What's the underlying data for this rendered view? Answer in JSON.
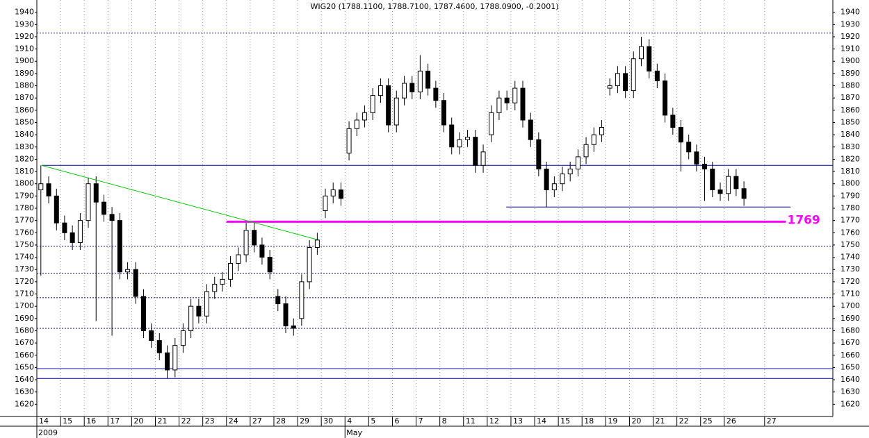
{
  "chart_data": {
    "type": "candlestick",
    "title": "WIG20 (1788.1100, 1788.7100, 1787.4600, 1788.0900, -0.2001)",
    "ylim": [
      1610,
      1950
    ],
    "yticks": [
      1620,
      1630,
      1640,
      1650,
      1660,
      1670,
      1680,
      1690,
      1700,
      1710,
      1720,
      1730,
      1740,
      1750,
      1760,
      1770,
      1780,
      1790,
      1800,
      1810,
      1820,
      1830,
      1840,
      1850,
      1860,
      1870,
      1880,
      1890,
      1900,
      1910,
      1920,
      1930,
      1940
    ],
    "xlim": [
      0,
      33.58
    ],
    "xticks": [
      {
        "value": 0,
        "label": "14"
      },
      {
        "value": 1,
        "label": "15"
      },
      {
        "value": 2,
        "label": "16"
      },
      {
        "value": 3,
        "label": "17"
      },
      {
        "value": 4,
        "label": "20"
      },
      {
        "value": 5,
        "label": "21"
      },
      {
        "value": 6,
        "label": "22"
      },
      {
        "value": 7,
        "label": "23"
      },
      {
        "value": 8,
        "label": "24"
      },
      {
        "value": 9,
        "label": "27"
      },
      {
        "value": 10,
        "label": "28"
      },
      {
        "value": 11,
        "label": "29"
      },
      {
        "value": 12,
        "label": "30"
      },
      {
        "value": 13,
        "label": "4"
      },
      {
        "value": 14,
        "label": "5"
      },
      {
        "value": 15,
        "label": "6"
      },
      {
        "value": 16,
        "label": "7"
      },
      {
        "value": 17,
        "label": "8"
      },
      {
        "value": 18,
        "label": "11"
      },
      {
        "value": 19,
        "label": "12"
      },
      {
        "value": 20,
        "label": "13"
      },
      {
        "value": 21,
        "label": "14"
      },
      {
        "value": 22,
        "label": "15"
      },
      {
        "value": 23,
        "label": "18"
      },
      {
        "value": 24,
        "label": "19"
      },
      {
        "value": 25,
        "label": "20"
      },
      {
        "value": 26,
        "label": "21"
      },
      {
        "value": 27,
        "label": "22"
      },
      {
        "value": 28,
        "label": "25"
      },
      {
        "value": 29,
        "label": "26"
      },
      {
        "value": 30.7,
        "label": "27"
      }
    ],
    "period_labels": [
      {
        "value": 0,
        "label": "2009"
      },
      {
        "value": 13,
        "label": "May"
      }
    ],
    "grid": true,
    "up_color": "#ffffff",
    "down_color": "#000000",
    "x": [
      0.17,
      0.5,
      0.83,
      1.17,
      1.5,
      1.83,
      2.17,
      2.5,
      2.83,
      3.17,
      3.5,
      3.83,
      4.17,
      4.5,
      4.83,
      5.17,
      5.5,
      5.83,
      6.17,
      6.5,
      6.83,
      7.17,
      7.5,
      7.83,
      8.17,
      8.5,
      8.83,
      9.17,
      9.5,
      9.83,
      10.17,
      10.5,
      10.83,
      11.17,
      11.5,
      11.83,
      12.17,
      12.5,
      12.83,
      13.17,
      13.5,
      13.83,
      14.17,
      14.5,
      14.83,
      15.17,
      15.5,
      15.83,
      16.17,
      16.5,
      16.83,
      17.17,
      17.5,
      17.83,
      18.17,
      18.5,
      18.83,
      19.17,
      19.5,
      19.83,
      20.17,
      20.5,
      20.83,
      21.17,
      21.5,
      21.83,
      22.17,
      22.5,
      22.83,
      23.17,
      23.5,
      23.83,
      24.17,
      24.5,
      24.83,
      25.17,
      25.5,
      25.83,
      26.17,
      26.5,
      26.83,
      27.17,
      27.5,
      27.83,
      28.17,
      28.5,
      28.83,
      29.17,
      29.5,
      29.83
    ],
    "open": [
      1795,
      1800,
      1790,
      1768,
      1760,
      1752,
      1770,
      1800,
      1785,
      1775,
      1770,
      1728,
      1730,
      1708,
      1680,
      1672,
      1662,
      1648,
      1668,
      1680,
      1700,
      1692,
      1712,
      1718,
      1722,
      1735,
      1742,
      1762,
      1750,
      1740,
      1708,
      1702,
      1684,
      1690,
      1720,
      1748,
      1778,
      1790,
      1795,
      1825,
      1845,
      1852,
      1858,
      1872,
      1880,
      1848,
      1870,
      1882,
      1875,
      1892,
      1878,
      1868,
      1848,
      1830,
      1836,
      1838,
      1815,
      1840,
      1858,
      1870,
      1866,
      1878,
      1852,
      1836,
      1812,
      1795,
      1800,
      1808,
      1812,
      1822,
      1832,
      1840,
      1878,
      1880,
      1890,
      1876,
      1902,
      1912,
      1892,
      1884,
      1856,
      1846,
      1834,
      1826,
      1816,
      1812,
      1795,
      1792,
      1806,
      1796
    ],
    "high": [
      1815,
      1806,
      1796,
      1774,
      1766,
      1776,
      1805,
      1806,
      1791,
      1781,
      1776,
      1736,
      1736,
      1714,
      1686,
      1678,
      1668,
      1674,
      1686,
      1706,
      1706,
      1718,
      1724,
      1728,
      1741,
      1748,
      1768,
      1768,
      1756,
      1746,
      1714,
      1708,
      1690,
      1726,
      1754,
      1760,
      1796,
      1801,
      1801,
      1851,
      1858,
      1864,
      1878,
      1886,
      1886,
      1876,
      1888,
      1888,
      1905,
      1898,
      1884,
      1874,
      1854,
      1842,
      1844,
      1844,
      1832,
      1864,
      1876,
      1876,
      1884,
      1884,
      1858,
      1842,
      1818,
      1806,
      1814,
      1818,
      1828,
      1838,
      1846,
      1852,
      1886,
      1896,
      1896,
      1908,
      1920,
      1918,
      1898,
      1890,
      1862,
      1852,
      1840,
      1832,
      1822,
      1818,
      1801,
      1812,
      1812,
      1802
    ],
    "low": [
      1725,
      1784,
      1762,
      1754,
      1746,
      1746,
      1764,
      1688,
      1769,
      1676,
      1722,
      1722,
      1702,
      1674,
      1666,
      1656,
      1641,
      1642,
      1662,
      1674,
      1686,
      1686,
      1706,
      1712,
      1716,
      1729,
      1736,
      1744,
      1734,
      1722,
      1696,
      1678,
      1676,
      1684,
      1714,
      1742,
      1772,
      1784,
      1782,
      1819,
      1839,
      1846,
      1852,
      1866,
      1842,
      1842,
      1864,
      1869,
      1869,
      1872,
      1862,
      1842,
      1824,
      1824,
      1830,
      1809,
      1809,
      1834,
      1852,
      1860,
      1860,
      1846,
      1830,
      1806,
      1781,
      1789,
      1794,
      1802,
      1806,
      1816,
      1826,
      1834,
      1872,
      1874,
      1870,
      1870,
      1896,
      1886,
      1878,
      1850,
      1840,
      1810,
      1820,
      1810,
      1786,
      1789,
      1786,
      1786,
      1790,
      1782
    ],
    "close": [
      1800,
      1790,
      1768,
      1760,
      1752,
      1770,
      1800,
      1785,
      1775,
      1770,
      1728,
      1730,
      1708,
      1680,
      1672,
      1662,
      1648,
      1668,
      1680,
      1700,
      1692,
      1712,
      1718,
      1722,
      1735,
      1742,
      1762,
      1750,
      1740,
      1728,
      1702,
      1684,
      1682,
      1720,
      1748,
      1754,
      1790,
      1795,
      1788,
      1845,
      1852,
      1858,
      1872,
      1880,
      1848,
      1870,
      1882,
      1875,
      1892,
      1878,
      1868,
      1848,
      1830,
      1836,
      1838,
      1815,
      1826,
      1858,
      1870,
      1866,
      1878,
      1852,
      1836,
      1812,
      1795,
      1800,
      1808,
      1812,
      1822,
      1832,
      1840,
      1846,
      1880,
      1890,
      1876,
      1902,
      1912,
      1892,
      1884,
      1856,
      1846,
      1834,
      1826,
      1816,
      1812,
      1795,
      1792,
      1806,
      1796,
      1788
    ],
    "levels": [
      {
        "value": 1923,
        "style": "dotted",
        "color": "#0000a8",
        "from": 0,
        "to": 33.58
      },
      {
        "value": 1815,
        "style": "solid",
        "color": "#0000a8",
        "from": 0.2,
        "to": 33.58
      },
      {
        "value": 1781,
        "style": "solid",
        "color": "#0000a8",
        "from": 19.8,
        "to": 31.8
      },
      {
        "value": 1749,
        "style": "dotted",
        "color": "#0000a8",
        "from": 0,
        "to": 33.58
      },
      {
        "value": 1727,
        "style": "dotted",
        "color": "#0000a8",
        "from": 0,
        "to": 33.58
      },
      {
        "value": 1707,
        "style": "dotted",
        "color": "#0000a8",
        "from": 0,
        "to": 33.58
      },
      {
        "value": 1682,
        "style": "dotted",
        "color": "#0000a8",
        "from": 0,
        "to": 33.58
      },
      {
        "value": 1649,
        "style": "solid",
        "color": "#0000a8",
        "from": 0,
        "to": 33.58
      },
      {
        "value": 1641,
        "style": "solid",
        "color": "#0000a8",
        "from": 0,
        "to": 33.58
      }
    ],
    "support": {
      "value": 1769,
      "color": "#ff00ff",
      "from": 8.0,
      "to": 31.6
    },
    "trendline": {
      "x": [
        0.2,
        11.9
      ],
      "y": [
        1815,
        1754
      ],
      "color": "#00cc00"
    }
  }
}
